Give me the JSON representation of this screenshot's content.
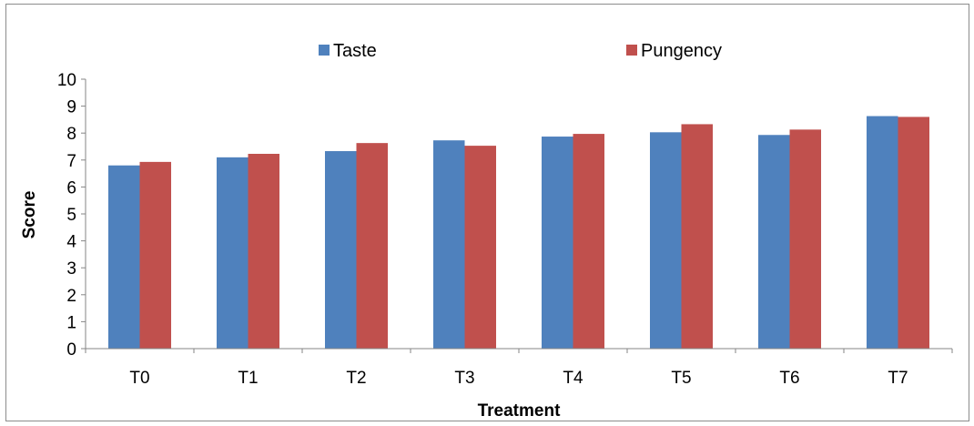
{
  "chart_data": {
    "type": "bar",
    "categories": [
      "T0",
      "T1",
      "T2",
      "T3",
      "T4",
      "T5",
      "T6",
      "T7"
    ],
    "series": [
      {
        "name": "Taste",
        "color": "#4F81BD",
        "values": [
          6.8,
          7.1,
          7.33,
          7.73,
          7.87,
          8.03,
          7.93,
          8.63
        ]
      },
      {
        "name": "Pungency",
        "color": "#C0504D",
        "values": [
          6.93,
          7.23,
          7.63,
          7.53,
          7.97,
          8.33,
          8.13,
          8.6
        ]
      }
    ],
    "xlabel": "Treatment",
    "ylabel": "Score",
    "ylim": [
      0,
      10
    ],
    "yticks": [
      "0",
      "1",
      "2",
      "3",
      "4",
      "5",
      "6",
      "7",
      "8",
      "9",
      "10"
    ],
    "grid": false,
    "legend_position": "top"
  }
}
